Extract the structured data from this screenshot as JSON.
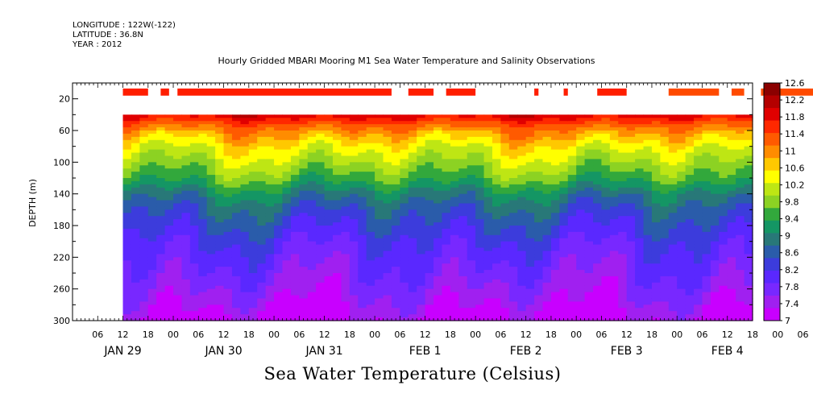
{
  "header": {
    "longitude": "LONGITUDE : 122W(-122)",
    "latitude": "LATITUDE : 36.8N",
    "year": "YEAR : 2012",
    "title": "Hourly Gridded MBARI Mooring M1 Sea Water Temperature and Salinity Observations"
  },
  "chart_data": {
    "type": "heatmap",
    "title": "Sea Water Temperature (Celsius)",
    "ylabel": "DEPTH (m)",
    "ylim": [
      300,
      0
    ],
    "yticks": [
      20,
      60,
      100,
      140,
      180,
      220,
      260,
      300
    ],
    "x_hour_start": 0,
    "x_hour_end": 162,
    "x_hour_ticks": [
      "06",
      "12",
      "18",
      "00",
      "06",
      "12",
      "18",
      "00",
      "06",
      "12",
      "18",
      "00",
      "06",
      "12",
      "18",
      "00",
      "06",
      "12",
      "18",
      "00",
      "06",
      "12",
      "18",
      "00",
      "06",
      "12",
      "18",
      "00",
      "06",
      "12",
      "18"
    ],
    "date_labels": [
      "JAN 29",
      "JAN 30",
      "JAN 31",
      "FEB  1",
      "FEB  2",
      "FEB  3",
      "FEB  4"
    ],
    "data_start_hour": 12,
    "temperature_profile": {
      "depth": [
        10,
        40,
        60,
        80,
        100,
        120,
        140,
        160,
        180,
        200,
        220,
        240,
        260,
        280,
        300
      ],
      "temperature": [
        12.2,
        11.9,
        11.0,
        10.4,
        10.0,
        9.6,
        9.0,
        8.6,
        8.35,
        8.1,
        7.9,
        7.75,
        7.55,
        7.35,
        7.1
      ]
    },
    "surface_depth_range": [
      7,
      16
    ],
    "surface_segments": [
      [
        12,
        18
      ],
      [
        21,
        23
      ],
      [
        25,
        76
      ],
      [
        80,
        86
      ],
      [
        89,
        96
      ],
      [
        110,
        111
      ],
      [
        117,
        118
      ],
      [
        125,
        132
      ],
      [
        142,
        154
      ],
      [
        157,
        160
      ],
      [
        164,
        177
      ]
    ],
    "colorbar": {
      "levels": [
        "12.6",
        "12.2",
        "11.8",
        "11.4",
        "11",
        "10.6",
        "10.2",
        "9.8",
        "9.4",
        "9",
        "8.6",
        "8.2",
        "7.8",
        "7.4",
        "7"
      ],
      "colors": [
        "#8b0000",
        "#b40000",
        "#e00000",
        "#ff2800",
        "#ff5a00",
        "#ff8c00",
        "#ffc800",
        "#ffff00",
        "#bee614",
        "#8cd223",
        "#32a83c",
        "#149664",
        "#287878",
        "#2a5caa",
        "#3c3cdc",
        "#5a28ff",
        "#7828ff",
        "#a020f0",
        "#c800ff"
      ]
    }
  }
}
